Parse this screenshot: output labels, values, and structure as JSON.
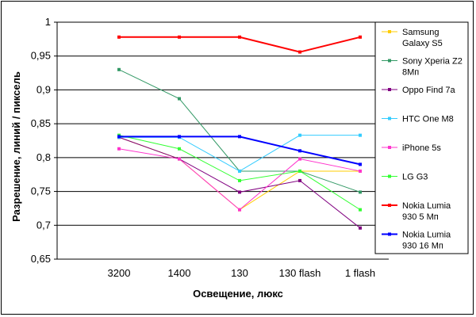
{
  "chart_data": {
    "type": "line",
    "title": "",
    "xlabel": "Освещение, люкс",
    "ylabel": "Разрешение, линий / пиксель",
    "categories": [
      "3200",
      "1400",
      "130",
      "130 flash",
      "1 flash"
    ],
    "ylim": [
      0.65,
      1.0
    ],
    "yticks": [
      0.65,
      0.7,
      0.75,
      0.8,
      0.85,
      0.9,
      0.95,
      1.0
    ],
    "ytick_labels": [
      "0,65",
      "0,7",
      "0,75",
      "0,8",
      "0,85",
      "0,9",
      "0,95",
      "1"
    ],
    "grid": "horizontal",
    "legend": "right",
    "series": [
      {
        "name": "Samsung Galaxy S5",
        "legend_lines": [
          "Samsung",
          "Galaxy S5"
        ],
        "color": "#ffcc00",
        "width": 1,
        "values": [
          0.83,
          0.798,
          0.723,
          0.78,
          0.78
        ]
      },
      {
        "name": "Sony Xperia Z2 8Мп",
        "legend_lines": [
          "Sony Xperia Z2",
          "8Мп"
        ],
        "color": "#339966",
        "width": 1,
        "values": [
          0.93,
          0.887,
          0.78,
          0.78,
          0.749
        ]
      },
      {
        "name": "Oppo Find 7a",
        "legend_lines": [
          "Oppo Find 7a"
        ],
        "color": "#800080",
        "width": 1,
        "values": [
          0.83,
          0.798,
          0.749,
          0.766,
          0.696
        ]
      },
      {
        "name": "HTC One M8",
        "legend_lines": [
          "HTC One M8"
        ],
        "color": "#33ccff",
        "width": 1,
        "values": [
          0.83,
          0.83,
          0.78,
          0.833,
          0.833
        ]
      },
      {
        "name": "iPhone 5s",
        "legend_lines": [
          "iPhone 5s"
        ],
        "color": "#ff33cc",
        "width": 1,
        "values": [
          0.813,
          0.798,
          0.723,
          0.798,
          0.78
        ]
      },
      {
        "name": "LG G3",
        "legend_lines": [
          "LG G3"
        ],
        "color": "#33ff33",
        "width": 1,
        "values": [
          0.833,
          0.813,
          0.766,
          0.78,
          0.723
        ]
      },
      {
        "name": "Nokia Lumia 930 5 Мп",
        "legend_lines": [
          "Nokia Lumia",
          "930 5 Мп"
        ],
        "color": "#ff0000",
        "width": 2,
        "values": [
          0.978,
          0.978,
          0.978,
          0.956,
          0.978
        ]
      },
      {
        "name": "Nokia Lumia 930 16 Мп",
        "legend_lines": [
          "Nokia Lumia",
          "930 16 Мп"
        ],
        "color": "#0000ff",
        "width": 2,
        "values": [
          0.831,
          0.831,
          0.831,
          0.81,
          0.79
        ]
      }
    ]
  }
}
